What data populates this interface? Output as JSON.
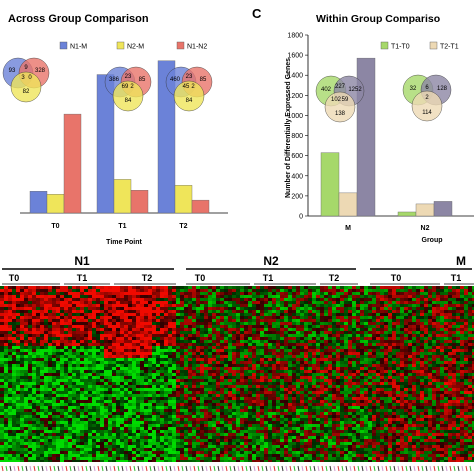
{
  "chart_data": [
    {
      "type": "bar",
      "title": "Across Group Comparison",
      "xlabel": "Time Point",
      "ylabel": "",
      "categories": [
        "T0",
        "T1",
        "T2"
      ],
      "ylim": [
        0,
        1800
      ],
      "series": [
        {
          "name": "N1-M",
          "color": "#6b82d8",
          "values": [
            220,
            1400,
            1540
          ]
        },
        {
          "name": "N2-M",
          "color": "#efe55a",
          "values": [
            190,
            340,
            280
          ]
        },
        {
          "name": "N1-N2",
          "color": "#e8746a",
          "values": [
            1000,
            230,
            130
          ]
        }
      ],
      "legend": "top",
      "venn": [
        {
          "values": [
            "93",
            "9",
            "328",
            "3",
            "0",
            "82"
          ]
        },
        {
          "values": [
            "386",
            "23",
            "85",
            "69",
            "2",
            "84"
          ]
        },
        {
          "values": [
            "460",
            "23",
            "85",
            "45",
            "2",
            "84"
          ]
        }
      ]
    },
    {
      "type": "bar",
      "panel_label": "C",
      "title": "Within Group Compariso",
      "xlabel": "Group",
      "ylabel": "Number of Differentially Expressed Genes",
      "categories": [
        "M",
        "N2"
      ],
      "ylim": [
        0,
        1800
      ],
      "yticks": [
        "0",
        "200",
        "400",
        "600",
        "800",
        "1000",
        "1200",
        "1400",
        "1600",
        "1800"
      ],
      "series": [
        {
          "name": "T1-T0",
          "color": "#a6d86a",
          "values": [
            630,
            40
          ]
        },
        {
          "name": "T2-T1",
          "color": "#edd9b4",
          "values": [
            230,
            120
          ]
        },
        {
          "name": "",
          "color": "#8c86a4",
          "values": [
            1570,
            145
          ]
        }
      ],
      "legend": "top",
      "venn": [
        {
          "values": [
            "402",
            "227",
            "1252",
            "102",
            "59",
            "138"
          ]
        },
        {
          "values": [
            "32",
            "6",
            "128",
            "2",
            "114"
          ]
        }
      ]
    },
    {
      "type": "heatmap",
      "groups": [
        {
          "name": "N1",
          "timepoints": [
            "T0",
            "T1",
            "T2"
          ]
        },
        {
          "name": "N2",
          "timepoints": [
            "T0",
            "T1",
            "T2"
          ]
        },
        {
          "name": "M",
          "timepoints": [
            "T0",
            "T1"
          ]
        }
      ],
      "colors": {
        "low": "#00c800",
        "mid": "#000000",
        "high": "#e00000"
      }
    }
  ]
}
